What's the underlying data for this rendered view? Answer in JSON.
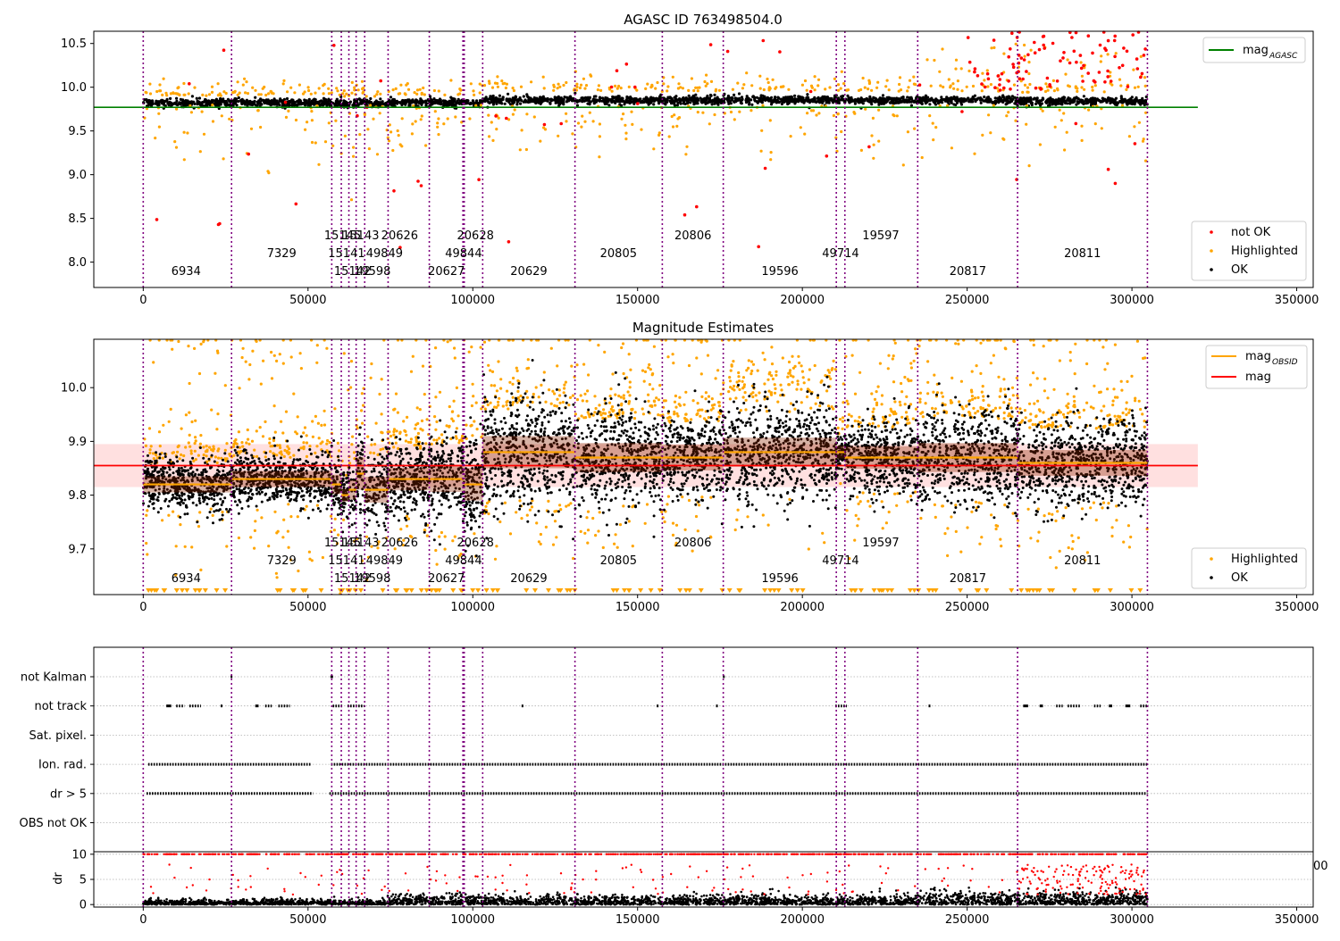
{
  "chart_data": [
    {
      "type": "scatter",
      "title": "AGASC ID 763498504.0",
      "xlabel": "",
      "ylabel": "",
      "xlim": [
        -15000,
        355000
      ],
      "ylim": [
        7.71,
        10.64
      ],
      "xticks": [
        0,
        50000,
        100000,
        150000,
        200000,
        250000,
        300000,
        350000
      ],
      "yticks": [
        8.0,
        8.5,
        9.0,
        9.5,
        10.0,
        10.5
      ],
      "ytick_labels": [
        "8.0",
        "8.5",
        "9.0",
        "9.5",
        "10.0",
        "10.5"
      ],
      "xtick_labels": [
        "0",
        "50000",
        "100000",
        "150000",
        "200000",
        "250000",
        "300000",
        "350000"
      ],
      "grid": false,
      "legends": [
        {
          "placement": "top-right",
          "entries": [
            {
              "label": "mag",
              "subscript": "AGASC",
              "kind": "line",
              "color": "#008000"
            }
          ]
        },
        {
          "placement": "bottom-right",
          "entries": [
            {
              "label": "not OK",
              "kind": "point",
              "color": "#ff0000"
            },
            {
              "label": "Highlighted",
              "kind": "point",
              "color": "#ffa500"
            },
            {
              "label": "OK",
              "kind": "point",
              "color": "#000000"
            }
          ]
        }
      ],
      "mag_agasc": 9.77,
      "obsid_boundaries": [
        0,
        26800,
        57200,
        60100,
        62400,
        64600,
        67200,
        74300,
        86800,
        97000,
        97400,
        103000,
        131000,
        157500,
        176000,
        210300,
        212900,
        235000,
        265300,
        304700
      ],
      "obsid_labels": [
        {
          "x": 13000,
          "row": 0,
          "text": "6934"
        },
        {
          "x": 42000,
          "row": 1,
          "text": "7329"
        },
        {
          "x": 60500,
          "row": 2,
          "text": "15145"
        },
        {
          "x": 61700,
          "row": 1,
          "text": "15141"
        },
        {
          "x": 63500,
          "row": 0,
          "text": "15142"
        },
        {
          "x": 66000,
          "row": 2,
          "text": "15143"
        },
        {
          "x": 69500,
          "row": 0,
          "text": "19598"
        },
        {
          "x": 73200,
          "row": 1,
          "text": "49849"
        },
        {
          "x": 77800,
          "row": 2,
          "text": "20626"
        },
        {
          "x": 92000,
          "row": 0,
          "text": "20627"
        },
        {
          "x": 97200,
          "row": 1,
          "text": "49844"
        },
        {
          "x": 100800,
          "row": 2,
          "text": "20628"
        },
        {
          "x": 117000,
          "row": 0,
          "text": "20629"
        },
        {
          "x": 144200,
          "row": 1,
          "text": "20805"
        },
        {
          "x": 166800,
          "row": 2,
          "text": "20806"
        },
        {
          "x": 193200,
          "row": 0,
          "text": "19596"
        },
        {
          "x": 211600,
          "row": 1,
          "text": "49714"
        },
        {
          "x": 223800,
          "row": 2,
          "text": "19597"
        },
        {
          "x": 250200,
          "row": 0,
          "text": "20817"
        },
        {
          "x": 285000,
          "row": 1,
          "text": "20811"
        }
      ],
      "segments": [
        {
          "x0": 0,
          "x1": 26800,
          "mean": 9.82,
          "std": 0.025
        },
        {
          "x0": 26800,
          "x1": 57200,
          "mean": 9.83,
          "std": 0.025
        },
        {
          "x0": 57200,
          "x1": 60100,
          "mean": 9.82,
          "std": 0.03
        },
        {
          "x0": 60100,
          "x1": 62400,
          "mean": 9.8,
          "std": 0.02
        },
        {
          "x0": 62400,
          "x1": 64600,
          "mean": 9.81,
          "std": 0.03
        },
        {
          "x0": 64600,
          "x1": 67200,
          "mean": 9.84,
          "std": 0.05
        },
        {
          "x0": 67200,
          "x1": 74300,
          "mean": 9.81,
          "std": 0.04
        },
        {
          "x0": 74300,
          "x1": 86800,
          "mean": 9.83,
          "std": 0.035
        },
        {
          "x0": 86800,
          "x1": 97000,
          "mean": 9.83,
          "std": 0.04
        },
        {
          "x0": 97000,
          "x1": 97400,
          "mean": 9.83,
          "std": 0.04
        },
        {
          "x0": 97400,
          "x1": 103000,
          "mean": 9.82,
          "std": 0.05
        },
        {
          "x0": 103000,
          "x1": 131000,
          "mean": 9.88,
          "std": 0.05
        },
        {
          "x0": 131000,
          "x1": 157500,
          "mean": 9.87,
          "std": 0.045
        },
        {
          "x0": 157500,
          "x1": 176000,
          "mean": 9.87,
          "std": 0.04
        },
        {
          "x0": 176000,
          "x1": 210300,
          "mean": 9.88,
          "std": 0.045
        },
        {
          "x0": 210300,
          "x1": 212900,
          "mean": 9.88,
          "std": 0.02
        },
        {
          "x0": 212900,
          "x1": 235000,
          "mean": 9.87,
          "std": 0.035
        },
        {
          "x0": 235000,
          "x1": 265300,
          "mean": 9.87,
          "std": 0.045
        },
        {
          "x0": 265300,
          "x1": 304700,
          "mean": 9.86,
          "std": 0.04
        }
      ]
    },
    {
      "type": "scatter",
      "title": "Magnitude Estimates",
      "xlabel": "",
      "ylabel": "",
      "xlim": [
        -15000,
        355000
      ],
      "ylim": [
        9.615,
        10.09
      ],
      "xticks": [
        0,
        50000,
        100000,
        150000,
        200000,
        250000,
        300000,
        350000
      ],
      "yticks": [
        9.7,
        9.8,
        9.9,
        10.0
      ],
      "ytick_labels": [
        "9.7",
        "9.8",
        "9.9",
        "10.0"
      ],
      "xtick_labels": [
        "0",
        "50000",
        "100000",
        "150000",
        "200000",
        "250000",
        "300000",
        "350000"
      ],
      "grid": false,
      "mag": 9.855,
      "mag_band": [
        9.815,
        9.895
      ],
      "legends": [
        {
          "placement": "top-right",
          "entries": [
            {
              "label": "mag",
              "subscript": "OBSID",
              "kind": "line",
              "color": "#ffa500"
            },
            {
              "label": "mag",
              "kind": "line",
              "color": "#ff0000"
            }
          ]
        },
        {
          "placement": "bottom-right",
          "entries": [
            {
              "label": "Highlighted",
              "kind": "point",
              "color": "#ffa500"
            },
            {
              "label": "OK",
              "kind": "point",
              "color": "#000000"
            }
          ]
        }
      ]
    },
    {
      "type": "scatter",
      "title": "",
      "xlabel": "",
      "ylabel": "",
      "xlim": [
        -15000,
        355000
      ],
      "categories": [
        "not Kalman",
        "not track",
        "Sat. pixel.",
        "Ion. rad.",
        "dr > 5",
        "OBS not OK"
      ],
      "grid": true,
      "flags": [
        {
          "category": "not Kalman",
          "ranges": [
            [
              26500,
              27000
            ],
            [
              56800,
              57600
            ],
            [
              175900,
              176100
            ]
          ]
        },
        {
          "category": "not track",
          "ranges": [
            [
              7000,
              8500
            ],
            [
              10000,
              12500
            ],
            [
              14000,
              17500
            ],
            [
              23500,
              24000
            ],
            [
              34000,
              35000
            ],
            [
              37000,
              39000
            ],
            [
              41000,
              44500
            ],
            [
              57500,
              60500
            ],
            [
              62000,
              67000
            ],
            [
              114800,
              115200
            ],
            [
              155800,
              156200
            ],
            [
              173800,
              174200
            ],
            [
              210000,
              213500
            ],
            [
              238300,
              238800
            ],
            [
              267000,
              268500
            ],
            [
              272000,
              273000
            ],
            [
              277000,
              279000
            ],
            [
              280500,
              284500
            ],
            [
              288500,
              290500
            ],
            [
              293000,
              294000
            ],
            [
              298000,
              299500
            ],
            [
              302500,
              305000
            ]
          ]
        },
        {
          "category": "Ion. rad.",
          "ranges": [
            [
              1500,
              51000
            ],
            [
              57000,
              304700
            ]
          ]
        },
        {
          "category": "dr > 5",
          "ranges": [
            [
              1000,
              51500
            ],
            [
              56500,
              304700
            ]
          ]
        }
      ]
    },
    {
      "type": "scatter",
      "title": "",
      "xlabel": "",
      "ylabel": "dr",
      "xlim": [
        -15000,
        355000
      ],
      "ylim": [
        -0.5,
        10.5
      ],
      "yticks": [
        0,
        5,
        10
      ],
      "ytick_labels": [
        "0",
        "5",
        "10"
      ],
      "xticks": [
        0,
        50000,
        100000,
        150000,
        200000,
        250000,
        300000,
        350000
      ],
      "xtick_labels": [
        "0",
        "50000",
        "100000",
        "150000",
        "200000",
        "250000",
        "300000",
        "350000"
      ],
      "clipped_label": "00",
      "grid": true
    }
  ]
}
